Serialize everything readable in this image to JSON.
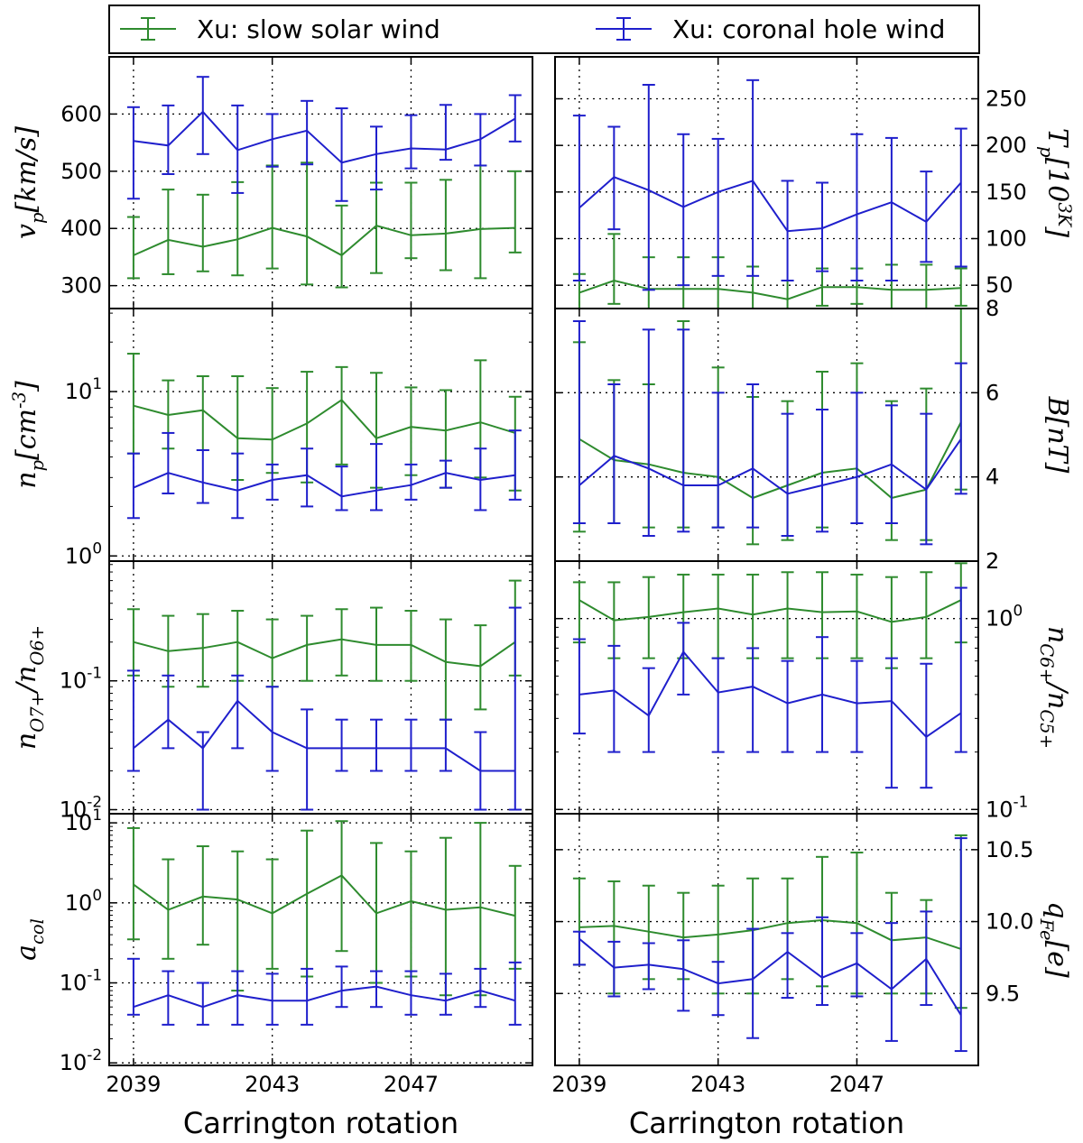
{
  "colors": {
    "slow": "#2e8b2e",
    "hole": "#1f1fcc"
  },
  "legend": {
    "items": [
      "Xu: slow solar wind",
      "Xu: coronal hole wind"
    ],
    "placement": "top"
  },
  "chart_data": [
    {
      "type": "line",
      "id": "vp",
      "xlabel": "",
      "ylabel": "v_p[km/s]",
      "yaxis_side": "left",
      "yscale": "linear",
      "ylim": [
        260,
        700
      ],
      "xlim": [
        2038.3,
        2050.5
      ],
      "grid": true,
      "yticks": [
        300,
        400,
        500,
        600
      ],
      "yticklabels": [
        "300",
        "400",
        "500",
        "600"
      ],
      "x": [
        2039,
        2040,
        2041,
        2042,
        2043,
        2044,
        2045,
        2046,
        2047,
        2048,
        2049,
        2050
      ],
      "series": [
        {
          "name": "Xu: slow solar wind",
          "values": [
            353,
            380,
            368,
            381,
            401,
            386,
            353,
            405,
            388,
            391,
            399,
            401
          ],
          "lo": [
            313,
            320,
            325,
            318,
            330,
            302,
            297,
            322,
            348,
            327,
            313,
            358
          ],
          "hi": [
            420,
            468,
            459,
            481,
            510,
            515,
            440,
            480,
            480,
            485,
            510,
            500
          ]
        },
        {
          "name": "Xu: coronal hole wind",
          "values": [
            553,
            545,
            604,
            537,
            556,
            571,
            515,
            530,
            540,
            538,
            556,
            592
          ],
          "lo": [
            452,
            495,
            530,
            462,
            508,
            512,
            448,
            468,
            505,
            520,
            510,
            552
          ],
          "hi": [
            612,
            615,
            665,
            615,
            600,
            623,
            610,
            578,
            598,
            616,
            600,
            633
          ]
        }
      ]
    },
    {
      "type": "line",
      "id": "tp",
      "xlabel": "",
      "ylabel": "T_p[10^3K]",
      "yaxis_side": "right",
      "yscale": "linear",
      "ylim": [
        25,
        295
      ],
      "xlim": [
        2038.3,
        2050.5
      ],
      "grid": true,
      "yticks": [
        50,
        100,
        150,
        200,
        250
      ],
      "yticklabels": [
        "50",
        "100",
        "150",
        "200",
        "250"
      ],
      "x": [
        2039,
        2040,
        2041,
        2042,
        2043,
        2044,
        2045,
        2046,
        2047,
        2048,
        2049,
        2050
      ],
      "series": [
        {
          "name": "Xu: slow solar wind",
          "values": [
            42,
            55,
            46,
            46,
            46,
            42,
            35,
            48,
            48,
            45,
            45,
            47
          ],
          "lo": [
            25,
            30,
            20,
            18,
            20,
            18,
            15,
            28,
            30,
            18,
            18,
            28
          ],
          "hi": [
            62,
            105,
            80,
            80,
            80,
            70,
            55,
            68,
            68,
            72,
            72,
            68
          ]
        },
        {
          "name": "Xu: coronal hole wind",
          "values": [
            133,
            166,
            152,
            134,
            150,
            162,
            108,
            111,
            126,
            139,
            118,
            160
          ],
          "lo": [
            55,
            110,
            45,
            50,
            60,
            60,
            55,
            65,
            55,
            55,
            75,
            70
          ],
          "hi": [
            232,
            220,
            265,
            212,
            207,
            270,
            162,
            160,
            212,
            208,
            172,
            218
          ]
        }
      ]
    },
    {
      "type": "line",
      "id": "np",
      "xlabel": "",
      "ylabel": "n_p[cm^-3]",
      "yaxis_side": "left",
      "yscale": "log",
      "ylim": [
        0.93,
        32
      ],
      "xlim": [
        2038.3,
        2050.5
      ],
      "grid": true,
      "yticks": [
        1,
        10
      ],
      "yticklabels": [
        "10^0",
        "10^1"
      ],
      "x": [
        2039,
        2040,
        2041,
        2042,
        2043,
        2044,
        2045,
        2046,
        2047,
        2048,
        2049,
        2050
      ],
      "series": [
        {
          "name": "Xu: slow solar wind",
          "values": [
            8.2,
            7.2,
            7.7,
            5.2,
            5.1,
            6.4,
            8.9,
            5.2,
            6.1,
            5.8,
            6.5,
            5.6
          ],
          "lo": [
            4.2,
            4.5,
            4.4,
            2.9,
            3.2,
            2.8,
            3.6,
            2.6,
            3.1,
            2.6,
            3.0,
            2.5
          ],
          "hi": [
            17.0,
            11.7,
            12.4,
            12.4,
            10.5,
            13.2,
            14.1,
            13.0,
            10.6,
            10.2,
            15.5,
            9.3
          ]
        },
        {
          "name": "Xu: coronal hole wind",
          "values": [
            2.6,
            3.2,
            2.8,
            2.5,
            2.9,
            3.1,
            2.3,
            2.5,
            2.7,
            3.2,
            2.9,
            3.1
          ],
          "lo": [
            1.7,
            2.4,
            2.1,
            1.7,
            2.2,
            2.0,
            1.9,
            1.9,
            2.2,
            2.6,
            1.9,
            2.2
          ],
          "hi": [
            4.2,
            5.6,
            4.4,
            4.2,
            3.6,
            4.5,
            3.5,
            4.8,
            3.6,
            3.8,
            4.5,
            5.8
          ]
        }
      ]
    },
    {
      "type": "line",
      "id": "B",
      "xlabel": "",
      "ylabel": "B[nT]",
      "yaxis_side": "right",
      "yscale": "linear",
      "ylim": [
        2,
        8
      ],
      "xlim": [
        2038.3,
        2050.5
      ],
      "grid": true,
      "yticks": [
        2,
        4,
        6,
        8
      ],
      "yticklabels": [
        "2",
        "4",
        "6",
        "8"
      ],
      "x": [
        2039,
        2040,
        2041,
        2042,
        2043,
        2044,
        2045,
        2046,
        2047,
        2048,
        2049,
        2050
      ],
      "series": [
        {
          "name": "Xu: slow solar wind",
          "values": [
            4.9,
            4.4,
            4.3,
            4.1,
            4.0,
            3.5,
            3.8,
            4.1,
            4.2,
            3.5,
            3.7,
            5.3
          ],
          "lo": [
            2.7,
            2.9,
            2.8,
            2.8,
            2.8,
            2.4,
            2.5,
            2.8,
            2.9,
            2.5,
            2.5,
            3.7
          ],
          "hi": [
            7.2,
            6.3,
            6.2,
            7.7,
            6.6,
            5.9,
            5.8,
            6.5,
            6.7,
            5.8,
            6.1,
            8.0
          ]
        },
        {
          "name": "Xu: coronal hole wind",
          "values": [
            3.8,
            4.5,
            4.2,
            3.8,
            3.8,
            4.2,
            3.6,
            3.8,
            4.0,
            4.3,
            3.7,
            4.9
          ],
          "lo": [
            2.9,
            2.9,
            2.6,
            2.7,
            2.8,
            2.8,
            2.6,
            2.7,
            2.9,
            2.9,
            2.4,
            3.6
          ],
          "hi": [
            7.7,
            6.2,
            7.5,
            7.5,
            6.0,
            6.2,
            5.5,
            5.6,
            6.0,
            5.7,
            5.5,
            6.7
          ]
        }
      ]
    },
    {
      "type": "line",
      "id": "o76",
      "xlabel": "",
      "ylabel": "n_O7+/n_O6+",
      "yaxis_side": "left",
      "yscale": "log",
      "ylim": [
        0.0093,
        0.85
      ],
      "xlim": [
        2038.3,
        2050.5
      ],
      "grid": true,
      "yticks": [
        0.01,
        0.1
      ],
      "yticklabels": [
        "10^-2",
        "10^-1"
      ],
      "x": [
        2039,
        2040,
        2041,
        2042,
        2043,
        2044,
        2045,
        2046,
        2047,
        2048,
        2049,
        2050
      ],
      "series": [
        {
          "name": "Xu: slow solar wind",
          "values": [
            0.2,
            0.17,
            0.18,
            0.2,
            0.15,
            0.19,
            0.21,
            0.19,
            0.19,
            0.14,
            0.13,
            0.2
          ],
          "lo": [
            0.11,
            0.09,
            0.09,
            0.1,
            0.09,
            0.1,
            0.11,
            0.1,
            0.1,
            0.05,
            0.06,
            0.11
          ],
          "hi": [
            0.36,
            0.32,
            0.33,
            0.35,
            0.3,
            0.32,
            0.36,
            0.37,
            0.35,
            0.3,
            0.27,
            0.6
          ]
        },
        {
          "name": "Xu: coronal hole wind",
          "values": [
            0.03,
            0.05,
            0.03,
            0.07,
            0.04,
            0.03,
            0.03,
            0.03,
            0.03,
            0.03,
            0.02,
            0.02
          ],
          "lo": [
            0.02,
            0.03,
            0.01,
            0.03,
            0.02,
            0.01,
            0.02,
            0.02,
            0.02,
            0.02,
            0.01,
            0.01
          ],
          "hi": [
            0.12,
            0.11,
            0.04,
            0.11,
            0.09,
            0.06,
            0.05,
            0.05,
            0.05,
            0.05,
            0.04,
            0.37
          ]
        }
      ]
    },
    {
      "type": "line",
      "id": "c65",
      "xlabel": "",
      "ylabel": "n_C6+/n_C5+",
      "yaxis_side": "right",
      "yscale": "log",
      "ylim": [
        0.095,
        2.0
      ],
      "xlim": [
        2038.3,
        2050.5
      ],
      "grid": true,
      "yticks": [
        0.1,
        1
      ],
      "yticklabels": [
        "10^-1",
        "10^0"
      ],
      "x": [
        2039,
        2040,
        2041,
        2042,
        2043,
        2044,
        2045,
        2046,
        2047,
        2048,
        2049,
        2050
      ],
      "series": [
        {
          "name": "Xu: slow solar wind",
          "values": [
            1.25,
            0.98,
            1.02,
            1.08,
            1.13,
            1.05,
            1.13,
            1.08,
            1.09,
            0.96,
            1.02,
            1.25
          ],
          "lo": [
            0.75,
            0.62,
            0.62,
            0.62,
            0.62,
            0.62,
            0.62,
            0.62,
            0.62,
            0.55,
            0.62,
            0.75
          ],
          "hi": [
            1.55,
            1.55,
            1.65,
            1.7,
            1.7,
            1.7,
            1.75,
            1.75,
            1.7,
            1.65,
            1.75,
            1.95
          ]
        },
        {
          "name": "Xu: coronal hole wind",
          "values": [
            0.4,
            0.42,
            0.31,
            0.67,
            0.41,
            0.44,
            0.36,
            0.4,
            0.36,
            0.37,
            0.24,
            0.32
          ],
          "lo": [
            0.25,
            0.2,
            0.2,
            0.4,
            0.2,
            0.2,
            0.2,
            0.2,
            0.2,
            0.13,
            0.13,
            0.2
          ],
          "hi": [
            0.78,
            0.72,
            0.55,
            0.95,
            0.62,
            0.7,
            0.6,
            0.8,
            0.6,
            0.62,
            0.58,
            1.45
          ]
        }
      ]
    },
    {
      "type": "line",
      "id": "acol",
      "xlabel": "Carrington rotation",
      "ylabel": "a_col",
      "yaxis_side": "left",
      "yscale": "log",
      "ylim": [
        0.0093,
        13
      ],
      "xlim": [
        2038.3,
        2050.5
      ],
      "grid": true,
      "yticks": [
        0.01,
        0.1,
        1,
        10
      ],
      "yticklabels": [
        "10^-2",
        "10^-1",
        "10^0",
        "10^1"
      ],
      "xticks": [
        2039,
        2043,
        2047
      ],
      "xticklabels": [
        "2039",
        "2043",
        "2047"
      ],
      "x": [
        2039,
        2040,
        2041,
        2042,
        2043,
        2044,
        2045,
        2046,
        2047,
        2048,
        2049,
        2050
      ],
      "series": [
        {
          "name": "Xu: slow solar wind",
          "values": [
            1.7,
            0.82,
            1.2,
            1.1,
            0.74,
            1.3,
            2.2,
            0.74,
            1.05,
            0.82,
            0.88,
            0.69
          ],
          "lo": [
            0.35,
            0.2,
            0.3,
            0.08,
            0.15,
            0.12,
            0.25,
            0.1,
            0.12,
            0.07,
            0.07,
            0.15
          ],
          "hi": [
            8.6,
            3.5,
            5.1,
            4.4,
            3.5,
            8.0,
            10.5,
            5.6,
            4.4,
            6.5,
            10.0,
            2.9
          ]
        },
        {
          "name": "Xu: coronal hole wind",
          "values": [
            0.05,
            0.07,
            0.05,
            0.07,
            0.06,
            0.06,
            0.08,
            0.09,
            0.07,
            0.06,
            0.08,
            0.06
          ],
          "lo": [
            0.04,
            0.03,
            0.03,
            0.03,
            0.03,
            0.03,
            0.05,
            0.05,
            0.04,
            0.04,
            0.05,
            0.03
          ],
          "hi": [
            0.2,
            0.14,
            0.1,
            0.14,
            0.13,
            0.15,
            0.16,
            0.14,
            0.14,
            0.13,
            0.15,
            0.18
          ]
        }
      ]
    },
    {
      "type": "line",
      "id": "qfe",
      "xlabel": "Carrington rotation",
      "ylabel": "q_Fe[e]",
      "yaxis_side": "right",
      "yscale": "linear",
      "ylim": [
        9.0,
        10.75
      ],
      "xlim": [
        2038.3,
        2050.5
      ],
      "grid": true,
      "yticks": [
        9.5,
        10.0,
        10.5
      ],
      "yticklabels": [
        "9.5",
        "10.0",
        "10.5"
      ],
      "xticks": [
        2039,
        2043,
        2047
      ],
      "xticklabels": [
        "2039",
        "2043",
        "2047"
      ],
      "x": [
        2039,
        2040,
        2041,
        2042,
        2043,
        2044,
        2045,
        2046,
        2047,
        2048,
        2049,
        2050
      ],
      "series": [
        {
          "name": "Xu: slow solar wind",
          "values": [
            9.96,
            9.97,
            9.93,
            9.89,
            9.91,
            9.94,
            9.99,
            10.01,
            9.99,
            9.87,
            9.89,
            9.81
          ],
          "lo": [
            9.7,
            9.5,
            9.6,
            9.6,
            9.5,
            9.5,
            9.6,
            9.55,
            9.5,
            9.5,
            9.5,
            9.4
          ],
          "hi": [
            10.3,
            10.28,
            10.25,
            10.2,
            10.25,
            10.3,
            10.3,
            10.45,
            10.48,
            10.2,
            10.15,
            10.6
          ]
        },
        {
          "name": "Xu: coronal hole wind",
          "values": [
            9.88,
            9.68,
            9.7,
            9.67,
            9.57,
            9.6,
            9.79,
            9.61,
            9.71,
            9.53,
            9.74,
            9.35
          ],
          "lo": [
            9.7,
            9.48,
            9.53,
            9.38,
            9.35,
            9.19,
            9.47,
            9.42,
            9.48,
            9.17,
            9.42,
            9.1
          ],
          "hi": [
            9.93,
            9.86,
            9.85,
            9.87,
            9.72,
            9.95,
            9.92,
            10.03,
            9.92,
            9.99,
            10.07,
            10.58
          ]
        }
      ]
    }
  ]
}
